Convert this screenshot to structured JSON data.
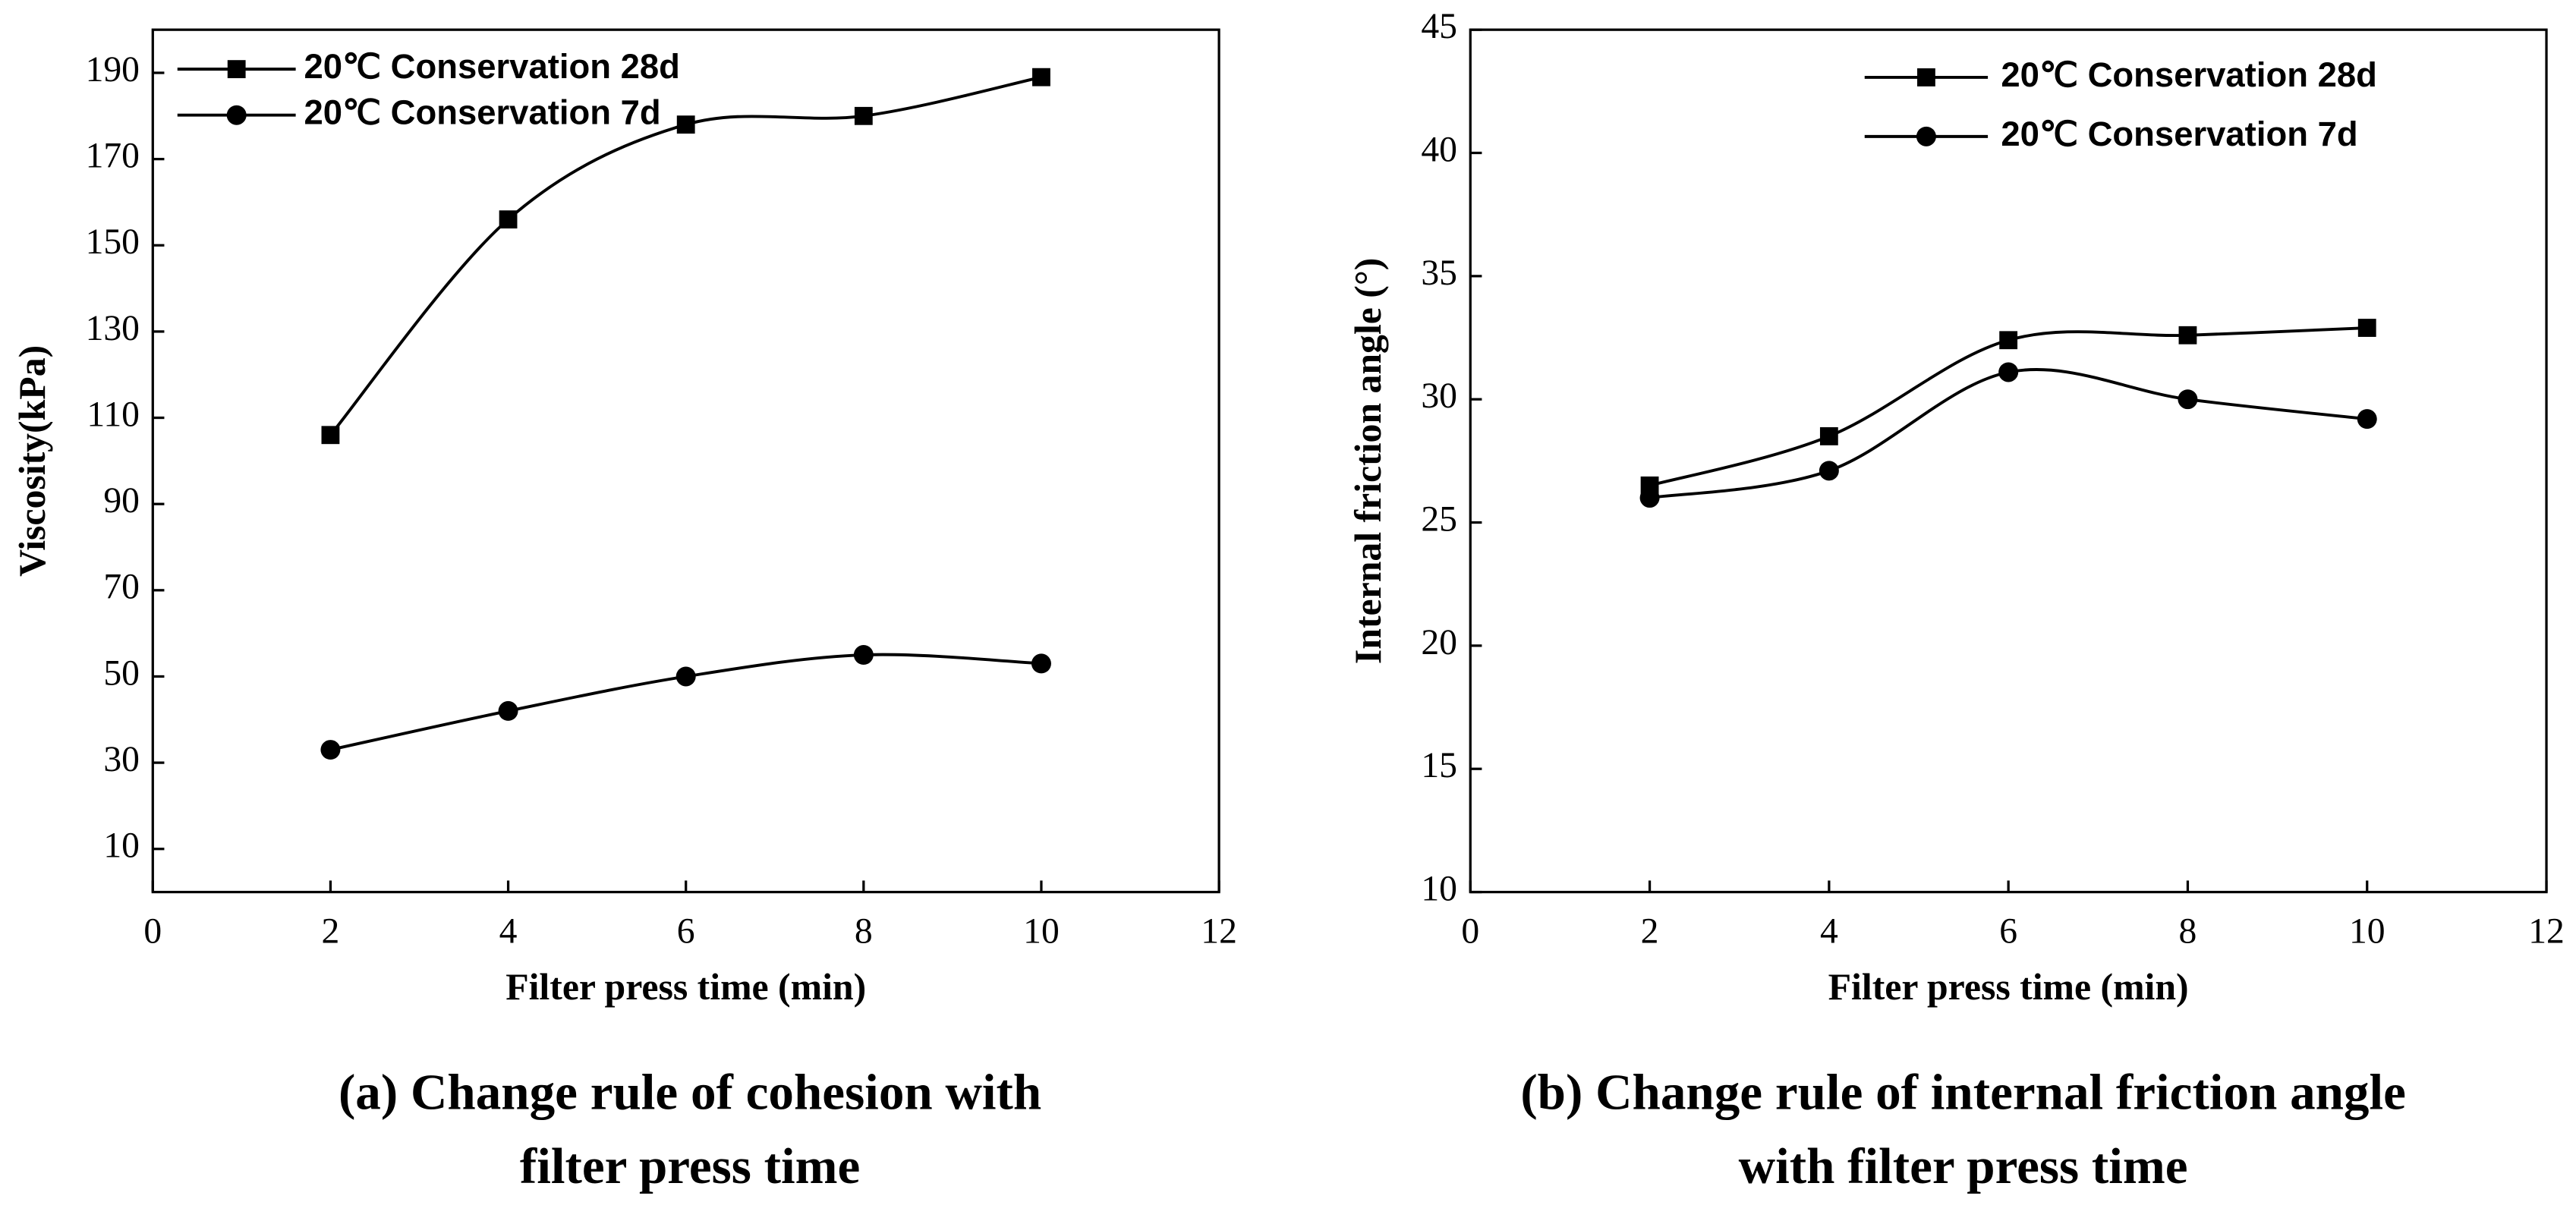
{
  "chart_data": [
    {
      "type": "line",
      "caption": [
        "(a) Change rule of cohesion with",
        "filter press time"
      ],
      "xlabel": "Filter press time (min)",
      "ylabel": "Viscosity(kPa)",
      "x": [
        2,
        4,
        6,
        8,
        10
      ],
      "series": [
        {
          "name": "20℃ Conservation 28d",
          "color": "#000000",
          "marker": "square",
          "values": [
            106,
            156,
            178,
            180,
            189
          ]
        },
        {
          "name": "20℃ Conservation 7d",
          "color": "#000000",
          "marker": "circle",
          "values": [
            33,
            42,
            50,
            55,
            53
          ]
        }
      ],
      "xlim": [
        0,
        12
      ],
      "xticks": [
        0,
        2,
        4,
        6,
        8,
        10,
        12
      ],
      "ylim": [
        0,
        200
      ],
      "yticks": [
        10,
        30,
        50,
        70,
        90,
        110,
        130,
        150,
        170,
        190
      ]
    },
    {
      "type": "line",
      "caption": [
        "(b) Change rule of internal friction angle",
        "with filter press time"
      ],
      "xlabel": "Filter press time (min)",
      "ylabel": "Internal friction angle (°)",
      "x": [
        2,
        4,
        6,
        8,
        10
      ],
      "series": [
        {
          "name": "20℃ Conservation 28d",
          "color": "#000000",
          "marker": "square",
          "values": [
            26.5,
            28.5,
            32.4,
            32.6,
            32.9
          ]
        },
        {
          "name": "20℃ Conservation 7d",
          "color": "#000000",
          "marker": "circle",
          "values": [
            26,
            27.1,
            31.1,
            30,
            29.2
          ]
        }
      ],
      "xlim": [
        0,
        12
      ],
      "xticks": [
        0,
        2,
        4,
        6,
        8,
        10,
        12
      ],
      "ylim": [
        10,
        45
      ],
      "yticks": [
        10,
        15,
        20,
        25,
        30,
        35,
        40,
        45
      ]
    }
  ]
}
